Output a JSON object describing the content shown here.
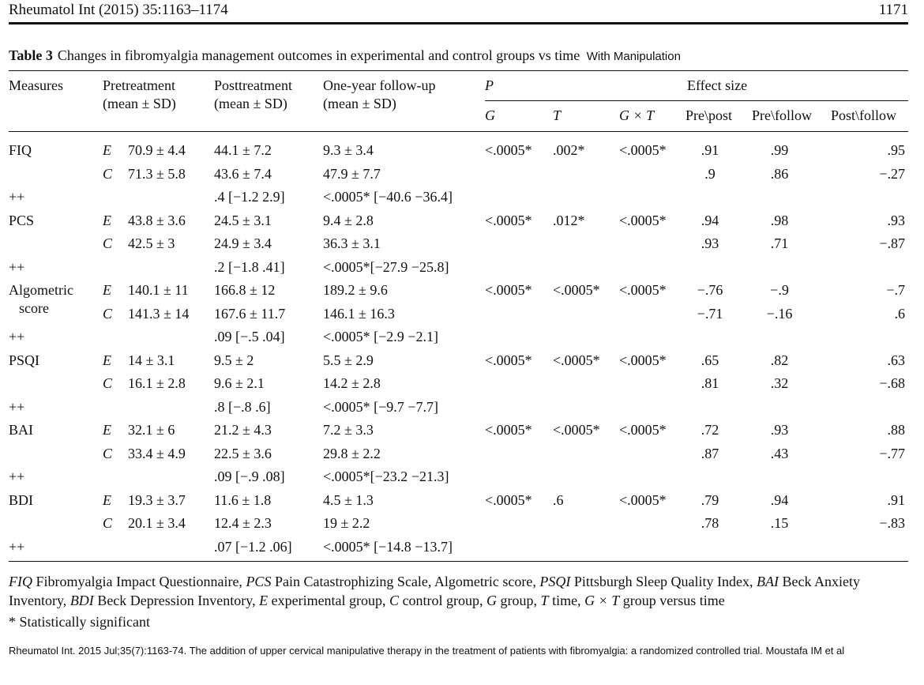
{
  "header": {
    "journal": "Rheumatol Int (2015) 35:1163–1174",
    "page": "1171"
  },
  "table_title": {
    "label": "Table 3",
    "text": "Changes in fibromyalgia management outcomes in experimental and control groups vs time",
    "note": "With Manipulation"
  },
  "columns": {
    "measures": "Measures",
    "pre_1": "Pretreatment",
    "pre_2": "(mean ± SD)",
    "post_1": "Posttreatment",
    "post_2": "(mean ± SD)",
    "follow_1": "One-year follow-up",
    "follow_2": "(mean ± SD)",
    "p": "P",
    "g": "G",
    "t": "T",
    "gxt": "G × T",
    "effect": "Effect size",
    "pre_post": "Pre\\post",
    "pre_follow": "Pre\\follow",
    "post_follow": "Post\\follow"
  },
  "measures": [
    {
      "name": [
        "FIQ"
      ],
      "E": {
        "pre": "70.9 ± 4.4",
        "post": "44.1 ± 7.2",
        "follow": "9.3 ± 3.4",
        "es": [
          ".91",
          ".99",
          ".95"
        ]
      },
      "C": {
        "pre": "71.3 ± 5.8",
        "post": "43.6 ± 7.4",
        "follow": "47.9 ± 7.7",
        "es": [
          ".9",
          ".86",
          "−.27"
        ]
      },
      "p": [
        "<.0005*",
        ".002*",
        "<.0005*"
      ],
      "plus": {
        "label": "++",
        "post": ".4 [−1.2 2.9]",
        "follow": "<.0005* [−40.6 −36.4]"
      }
    },
    {
      "name": [
        "PCS"
      ],
      "E": {
        "pre": "43.8 ± 3.6",
        "post": "24.5 ± 3.1",
        "follow": "9.4 ± 2.8",
        "es": [
          ".94",
          ".98",
          ".93"
        ]
      },
      "C": {
        "pre": "42.5 ± 3",
        "post": "24.9 ± 3.4",
        "follow": "36.3 ± 3.1",
        "es": [
          ".93",
          ".71",
          "−.87"
        ]
      },
      "p": [
        "<.0005*",
        ".012*",
        "<.0005*"
      ],
      "plus": {
        "label": "++",
        "post": ".2 [−1.8 .41]",
        "follow": "<.0005*[−27.9 −25.8]"
      }
    },
    {
      "name": [
        "Algometric",
        "score"
      ],
      "E": {
        "pre": "140.1 ± 11",
        "post": "166.8 ± 12",
        "follow": "189.2 ± 9.6",
        "es": [
          "−.76",
          "−.9",
          "−.7"
        ]
      },
      "C": {
        "pre": "141.3 ± 14",
        "post": "167.6 ± 11.7",
        "follow": "146.1 ± 16.3",
        "es": [
          "−.71",
          "−.16",
          ".6"
        ]
      },
      "p": [
        "<.0005*",
        "<.0005*",
        "<.0005*"
      ],
      "plus": {
        "label": "++",
        "post": ".09 [−.5 .04]",
        "follow": "<.0005* [−2.9 −2.1]"
      }
    },
    {
      "name": [
        "PSQI"
      ],
      "E": {
        "pre": "14 ± 3.1",
        "post": "9.5 ± 2",
        "follow": "5.5 ± 2.9",
        "es": [
          ".65",
          ".82",
          ".63"
        ]
      },
      "C": {
        "pre": "16.1 ± 2.8",
        "post": "9.6 ± 2.1",
        "follow": "14.2 ± 2.8",
        "es": [
          ".81",
          ".32",
          "−.68"
        ]
      },
      "p": [
        "<.0005*",
        "<.0005*",
        "<.0005*"
      ],
      "plus": {
        "label": "++",
        "post": ".8 [−.8 .6]",
        "follow": "<.0005* [−9.7 −7.7]"
      }
    },
    {
      "name": [
        "BAI"
      ],
      "E": {
        "pre": "32.1 ± 6",
        "post": "21.2 ± 4.3",
        "follow": "7.2 ± 3.3",
        "es": [
          ".72",
          ".93",
          ".88"
        ]
      },
      "C": {
        "pre": "33.4 ± 4.9",
        "post": "22.5 ± 3.6",
        "follow": "29.8 ± 2.2",
        "es": [
          ".87",
          ".43",
          "−.77"
        ]
      },
      "p": [
        "<.0005*",
        "<.0005*",
        "<.0005*"
      ],
      "plus": {
        "label": "++",
        "post": ".09 [−.9 .08]",
        "follow": "<.0005*[−23.2 −21.3]"
      }
    },
    {
      "name": [
        "BDI"
      ],
      "E": {
        "pre": "19.3 ± 3.7",
        "post": "11.6 ± 1.8",
        "follow": "4.5 ± 1.3",
        "es": [
          ".79",
          ".94",
          ".91"
        ]
      },
      "C": {
        "pre": "20.1 ± 3.4",
        "post": "12.4 ± 2.3",
        "follow": "19 ± 2.2",
        "es": [
          ".78",
          ".15",
          "−.83"
        ]
      },
      "p": [
        "<.0005*",
        ".6",
        "<.0005*"
      ],
      "plus": {
        "label": "++",
        "post": ".07 [−1.2 .06]",
        "follow": "<.0005* [−14.8 −13.7]"
      }
    }
  ],
  "footnote": [
    {
      "abbr": "FIQ",
      "desc": " Fibromyalgia Impact Questionnaire, "
    },
    {
      "abbr": "PCS",
      "desc": " Pain Catastrophizing Scale, Algometric score, "
    },
    {
      "abbr": "PSQI",
      "desc": " Pittsburgh Sleep Quality Index, "
    },
    {
      "abbr": "BAI",
      "desc": " Beck Anxiety Inventory, "
    },
    {
      "abbr": "BDI",
      "desc": " Beck Depression Inventory, "
    },
    {
      "abbr": "E",
      "desc": " experimental group, "
    },
    {
      "abbr": "C",
      "desc": " control group, "
    },
    {
      "abbr": "G",
      "desc": " group, "
    },
    {
      "abbr": "T",
      "desc": " time, "
    },
    {
      "abbr": "G × T",
      "desc": " group versus time"
    }
  ],
  "significance_note": "* Statistically significant",
  "citation": "Rheumatol Int. 2015 Jul;35(7):1163-74. The addition of upper cervical manipulative therapy in the treatment of patients with fibromyalgia: a randomized controlled trial. Moustafa IM et al"
}
